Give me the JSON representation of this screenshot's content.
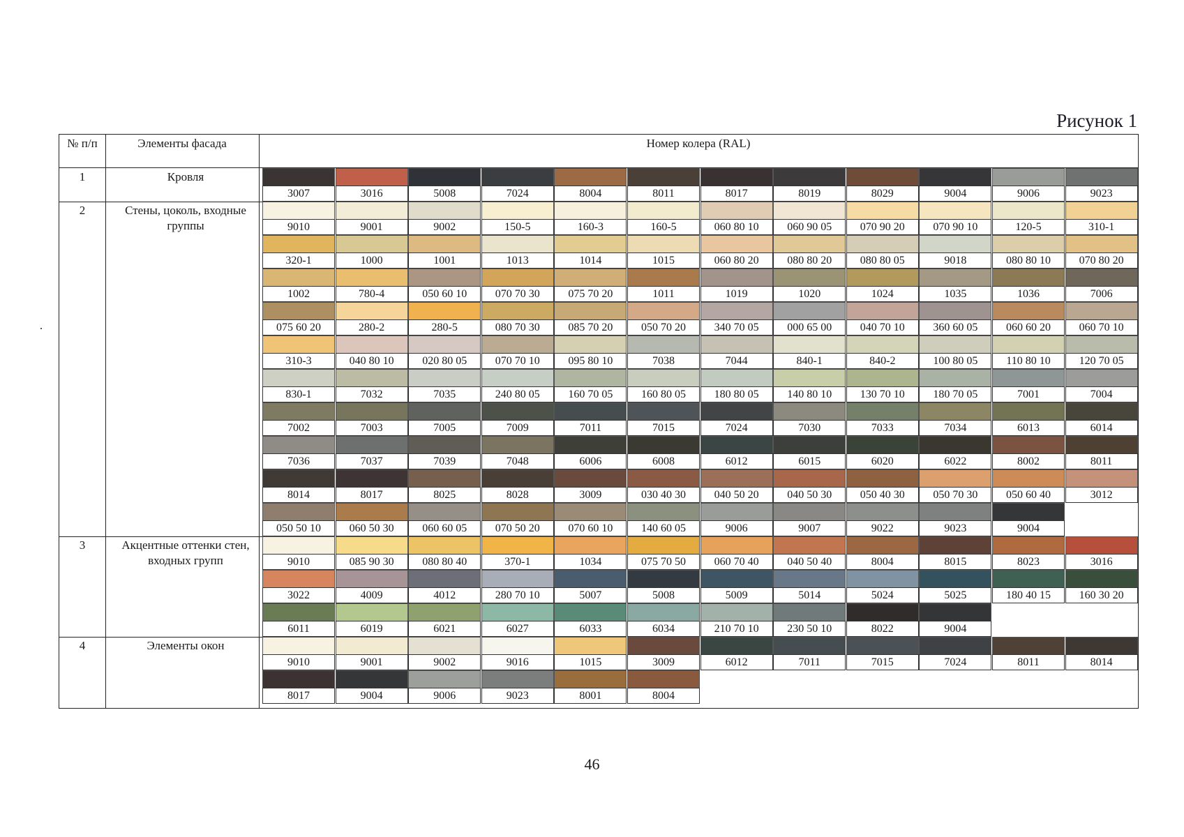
{
  "figure_title": "Рисунок 1",
  "header": {
    "num": "№ п/п",
    "elements": "Элементы фасада",
    "ral": "Номер колера (RAL)"
  },
  "sections": [
    {
      "num": "1",
      "name": "Кровля",
      "rows": [
        [
          {
            "code": "3007",
            "color": "#3a3433"
          },
          {
            "code": "3016",
            "color": "#c0604a"
          },
          {
            "code": "5008",
            "color": "#2f3338"
          },
          {
            "code": "7024",
            "color": "#3b3e40"
          },
          {
            "code": "8004",
            "color": "#9c6a44"
          },
          {
            "code": "8011",
            "color": "#4a4038"
          },
          {
            "code": "8017",
            "color": "#3a3232"
          },
          {
            "code": "8019",
            "color": "#3c3a3b"
          },
          {
            "code": "8029",
            "color": "#6e4c38"
          },
          {
            "code": "9004",
            "color": "#363638"
          },
          {
            "code": "9006",
            "color": "#9a9c98"
          },
          {
            "code": "9023",
            "color": "#6f7270"
          }
        ]
      ]
    },
    {
      "num": "2",
      "name": "Стены, цоколь, входные группы",
      "rows": [
        [
          {
            "code": "9010",
            "color": "#f7f2e2"
          },
          {
            "code": "9001",
            "color": "#f3ecd6"
          },
          {
            "code": "9002",
            "color": "#dfdccc"
          },
          {
            "code": "150-5",
            "color": "#f7efcf"
          },
          {
            "code": "160-3",
            "color": "#f7f0dc"
          },
          {
            "code": "160-5",
            "color": "#f2ebce"
          },
          {
            "code": "060 80 10",
            "color": "#e0cbb3"
          },
          {
            "code": "060 90 05",
            "color": "#f1e5d4"
          },
          {
            "code": "070 90 20",
            "color": "#f6dca4"
          },
          {
            "code": "070 90 10",
            "color": "#f5e6bf"
          },
          {
            "code": "120-5",
            "color": "#ece7c9"
          },
          {
            "code": "310-1",
            "color": "#f2d294"
          }
        ],
        [
          {
            "code": "320-1",
            "color": "#e1b55e"
          },
          {
            "code": "1000",
            "color": "#d7c894"
          },
          {
            "code": "1001",
            "color": "#dcba82"
          },
          {
            "code": "1013",
            "color": "#ebe4cd"
          },
          {
            "code": "1014",
            "color": "#e3cc92"
          },
          {
            "code": "1015",
            "color": "#eddcb3"
          },
          {
            "code": "060 80 20",
            "color": "#e8c6a0"
          },
          {
            "code": "080 80 20",
            "color": "#e0c996"
          },
          {
            "code": "080 80 05",
            "color": "#d6cdb6"
          },
          {
            "code": "9018",
            "color": "#d2d6c8"
          },
          {
            "code": "080 80 10",
            "color": "#dccdab"
          },
          {
            "code": "070 80 20",
            "color": "#e2c187"
          }
        ],
        [
          {
            "code": "1002",
            "color": "#d9b674"
          },
          {
            "code": "780-4",
            "color": "#e9be6f"
          },
          {
            "code": "050 60 10",
            "color": "#aa9683"
          },
          {
            "code": "070 70 30",
            "color": "#d2a55a"
          },
          {
            "code": "075 70 20",
            "color": "#cfae78"
          },
          {
            "code": "1011",
            "color": "#a87a4c"
          },
          {
            "code": "1019",
            "color": "#a2948a"
          },
          {
            "code": "1020",
            "color": "#9a9474"
          },
          {
            "code": "1024",
            "color": "#b29a5d"
          },
          {
            "code": "1035",
            "color": "#a39985"
          },
          {
            "code": "1036",
            "color": "#8c7a57"
          },
          {
            "code": "7006",
            "color": "#6f675a"
          }
        ],
        [
          {
            "code": "075 60 20",
            "color": "#ad8f61"
          },
          {
            "code": "280-2",
            "color": "#f6d59a"
          },
          {
            "code": "280-5",
            "color": "#efb24e"
          },
          {
            "code": "080 70 30",
            "color": "#ccaa62"
          },
          {
            "code": "085 70 20",
            "color": "#c6a974"
          },
          {
            "code": "050 70 20",
            "color": "#d4a987"
          },
          {
            "code": "340 70 05",
            "color": "#b3a6a3"
          },
          {
            "code": "000 65 00",
            "color": "#a2a1a1"
          },
          {
            "code": "040 70 10",
            "color": "#c3a499"
          },
          {
            "code": "360 60 05",
            "color": "#9e9391"
          },
          {
            "code": "060 60 20",
            "color": "#b98a5e"
          },
          {
            "code": "060 70 10",
            "color": "#b9a792"
          }
        ],
        [
          {
            "code": "310-3",
            "color": "#f0c476"
          },
          {
            "code": "040 80 10",
            "color": "#dcc5bb"
          },
          {
            "code": "020 80 05",
            "color": "#d6c9c4"
          },
          {
            "code": "070 70 10",
            "color": "#bcab93"
          },
          {
            "code": "095 80 10",
            "color": "#d5d0b2"
          },
          {
            "code": "7038",
            "color": "#b6b9b0"
          },
          {
            "code": "7044",
            "color": "#c6c2b3"
          },
          {
            "code": "840-1",
            "color": "#e2e1cd"
          },
          {
            "code": "840-2",
            "color": "#d4d4b8"
          },
          {
            "code": "100 80 05",
            "color": "#cfcdbb"
          },
          {
            "code": "110 80 10",
            "color": "#d2d1b2"
          },
          {
            "code": "120 70 05",
            "color": "#b9bbab"
          }
        ],
        [
          {
            "code": "830-1",
            "color": "#cfd0c4"
          },
          {
            "code": "7032",
            "color": "#bcbba3"
          },
          {
            "code": "7035",
            "color": "#c9cdc6"
          },
          {
            "code": "240 80 05",
            "color": "#c6cec5"
          },
          {
            "code": "160 70 05",
            "color": "#aeb6a2"
          },
          {
            "code": "160 80 05",
            "color": "#c8cdbd"
          },
          {
            "code": "180 80 05",
            "color": "#c2cbbf"
          },
          {
            "code": "140 80 10",
            "color": "#c8cea8"
          },
          {
            "code": "130 70 10",
            "color": "#adb58e"
          },
          {
            "code": "180 70 05",
            "color": "#a9b2a5"
          },
          {
            "code": "7001",
            "color": "#8e9795"
          },
          {
            "code": "7004",
            "color": "#9c9d9a"
          }
        ],
        [
          {
            "code": "7002",
            "color": "#7f7b62"
          },
          {
            "code": "7003",
            "color": "#77765d"
          },
          {
            "code": "7005",
            "color": "#5f625d"
          },
          {
            "code": "7009",
            "color": "#4c514a"
          },
          {
            "code": "7011",
            "color": "#464d4f"
          },
          {
            "code": "7015",
            "color": "#4f5458"
          },
          {
            "code": "7024",
            "color": "#424545"
          },
          {
            "code": "7030",
            "color": "#8c8a7f"
          },
          {
            "code": "7033",
            "color": "#75806b"
          },
          {
            "code": "7034",
            "color": "#8c8665"
          },
          {
            "code": "6013",
            "color": "#737454"
          },
          {
            "code": "6014",
            "color": "#48463a"
          }
        ],
        [
          {
            "code": "7036",
            "color": "#8f8c88"
          },
          {
            "code": "7037",
            "color": "#6e706f"
          },
          {
            "code": "7039",
            "color": "#5f5d56"
          },
          {
            "code": "7048",
            "color": "#7b7460"
          },
          {
            "code": "6006",
            "color": "#3e3f39"
          },
          {
            "code": "6008",
            "color": "#3a3a33"
          },
          {
            "code": "6012",
            "color": "#3b4543"
          },
          {
            "code": "6015",
            "color": "#3d3f3a"
          },
          {
            "code": "6020",
            "color": "#3b4237"
          },
          {
            "code": "6022",
            "color": "#3a3630"
          },
          {
            "code": "8002",
            "color": "#7a5440"
          },
          {
            "code": "8011",
            "color": "#4f4034"
          }
        ],
        [
          {
            "code": "8014",
            "color": "#3f3a35"
          },
          {
            "code": "8017",
            "color": "#3e3433"
          },
          {
            "code": "8025",
            "color": "#765f4c"
          },
          {
            "code": "8028",
            "color": "#4a3f36"
          },
          {
            "code": "3009",
            "color": "#6a4a3c"
          },
          {
            "code": "030 40 30",
            "color": "#8a5a44"
          },
          {
            "code": "040 50 20",
            "color": "#9c7058"
          },
          {
            "code": "040 50 30",
            "color": "#a8674a"
          },
          {
            "code": "050 40 30",
            "color": "#8e6140"
          },
          {
            "code": "050 70 30",
            "color": "#dc9f6e"
          },
          {
            "code": "050 60 40",
            "color": "#cd8b58"
          },
          {
            "code": "3012",
            "color": "#c4927a"
          }
        ],
        [
          {
            "code": "050 50 10",
            "color": "#8f7d6d"
          },
          {
            "code": "060 50 30",
            "color": "#ab7c4b"
          },
          {
            "code": "060 60 05",
            "color": "#968f87"
          },
          {
            "code": "070 50 20",
            "color": "#8e7653"
          },
          {
            "code": "070 60 10",
            "color": "#9a8b77"
          },
          {
            "code": "140 60 05",
            "color": "#8c917f"
          },
          {
            "code": "9006",
            "color": "#9a9c99"
          },
          {
            "code": "9007",
            "color": "#8a8884"
          },
          {
            "code": "9022",
            "color": "#8d8f8c"
          },
          {
            "code": "9023",
            "color": "#7e8180"
          },
          {
            "code": "9004",
            "color": "#343638"
          }
        ]
      ]
    },
    {
      "num": "3",
      "name": "Акцентные оттенки стен, входных групп",
      "rows": [
        [
          {
            "code": "9010",
            "color": "#f7f2e2"
          },
          {
            "code": "085 90 30",
            "color": "#f6dc8a"
          },
          {
            "code": "080 80 40",
            "color": "#edc465"
          },
          {
            "code": "370-1",
            "color": "#f1b446"
          },
          {
            "code": "1034",
            "color": "#e9a45e"
          },
          {
            "code": "075 70 50",
            "color": "#e4ac40"
          },
          {
            "code": "060 70 40",
            "color": "#e6a15a"
          },
          {
            "code": "040 50 40",
            "color": "#c1764f"
          },
          {
            "code": "8004",
            "color": "#9c6844"
          },
          {
            "code": "8015",
            "color": "#5e4238"
          },
          {
            "code": "8023",
            "color": "#b06a3f"
          },
          {
            "code": "3016",
            "color": "#b6503c"
          }
        ],
        [
          {
            "code": "3022",
            "color": "#d7855e"
          },
          {
            "code": "4009",
            "color": "#a69496"
          },
          {
            "code": "4012",
            "color": "#6d6f78"
          },
          {
            "code": "280 70 10",
            "color": "#a9adb7"
          },
          {
            "code": "5007",
            "color": "#4a5d6f"
          },
          {
            "code": "5008",
            "color": "#333a41"
          },
          {
            "code": "5009",
            "color": "#3e5563"
          },
          {
            "code": "5014",
            "color": "#697888"
          },
          {
            "code": "5024",
            "color": "#7f93a2"
          },
          {
            "code": "5025",
            "color": "#34525d"
          },
          {
            "code": "180 40 15",
            "color": "#3e6154"
          },
          {
            "code": "160 30 20",
            "color": "#3a4e3c"
          }
        ],
        [
          {
            "code": "6011",
            "color": "#697c54"
          },
          {
            "code": "6019",
            "color": "#b3c88e"
          },
          {
            "code": "6021",
            "color": "#8ea16e"
          },
          {
            "code": "6027",
            "color": "#8cb8a5"
          },
          {
            "code": "6033",
            "color": "#5a8b78"
          },
          {
            "code": "6034",
            "color": "#8ba9a3"
          },
          {
            "code": "210 70 10",
            "color": "#a2b2aa"
          },
          {
            "code": "230 50 10",
            "color": "#707a7b"
          },
          {
            "code": "8022",
            "color": "#302c2c"
          },
          {
            "code": "9004",
            "color": "#343537"
          }
        ]
      ]
    },
    {
      "num": "4",
      "name": "Элементы окон",
      "rows": [
        [
          {
            "code": "9010",
            "color": "#f7f2e2"
          },
          {
            "code": "9001",
            "color": "#f3ead2"
          },
          {
            "code": "9002",
            "color": "#e4e1d2"
          },
          {
            "code": "9016",
            "color": "#f6f5ee"
          },
          {
            "code": "1015",
            "color": "#eec77a"
          },
          {
            "code": "3009",
            "color": "#6b4a3e"
          },
          {
            "code": "6012",
            "color": "#3a4642"
          },
          {
            "code": "7011",
            "color": "#454d50"
          },
          {
            "code": "7015",
            "color": "#4c5156"
          },
          {
            "code": "7024",
            "color": "#3f4244"
          },
          {
            "code": "8011",
            "color": "#4f4135"
          },
          {
            "code": "8014",
            "color": "#3d3833"
          }
        ],
        [
          {
            "code": "8017",
            "color": "#3c3232"
          },
          {
            "code": "9004",
            "color": "#353638"
          },
          {
            "code": "9006",
            "color": "#9d9f9b"
          },
          {
            "code": "9023",
            "color": "#7b7e7d"
          },
          {
            "code": "8001",
            "color": "#9a6d3c"
          },
          {
            "code": "8004",
            "color": "#8a5a3f"
          }
        ]
      ]
    }
  ],
  "page_number": "46"
}
